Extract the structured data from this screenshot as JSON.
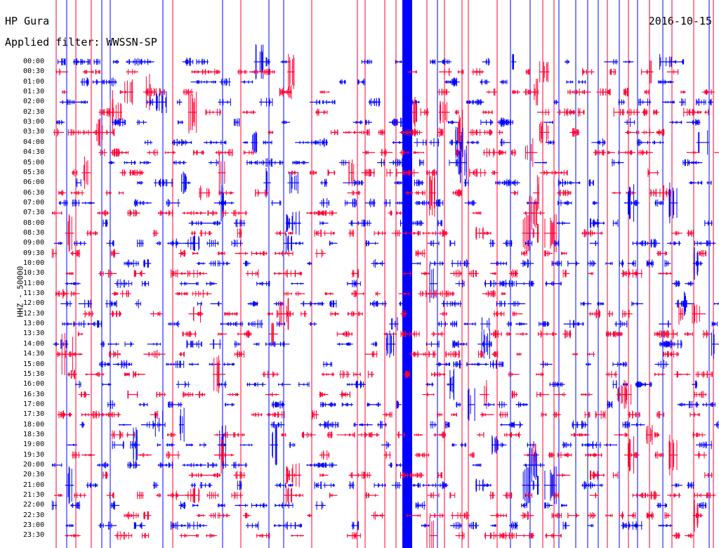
{
  "header": {
    "station": "HP Gura",
    "date": "2016-10-15",
    "filter": "Applied filter: WWSSN-SP"
  },
  "axis": {
    "ylabel": "HHZ - 50000",
    "time_labels": [
      "00:00",
      "00:30",
      "01:00",
      "01:30",
      "02:00",
      "02:30",
      "03:00",
      "03:30",
      "04:00",
      "04:30",
      "05:00",
      "05:30",
      "06:00",
      "06:30",
      "07:00",
      "07:30",
      "08:00",
      "08:30",
      "09:00",
      "09:30",
      "10:00",
      "10:30",
      "11:00",
      "11:30",
      "12:00",
      "12:30",
      "13:00",
      "13:30",
      "14:00",
      "14:30",
      "15:00",
      "15:30",
      "16:00",
      "16:30",
      "17:00",
      "17:30",
      "18:00",
      "18:30",
      "19:00",
      "19:30",
      "20:00",
      "20:30",
      "21:00",
      "21:30",
      "22:00",
      "22:30",
      "23:00",
      "23:30"
    ]
  },
  "colors": {
    "trace_a": "#0000ff",
    "trace_b": "#ff0033",
    "text": "#000000"
  }
}
